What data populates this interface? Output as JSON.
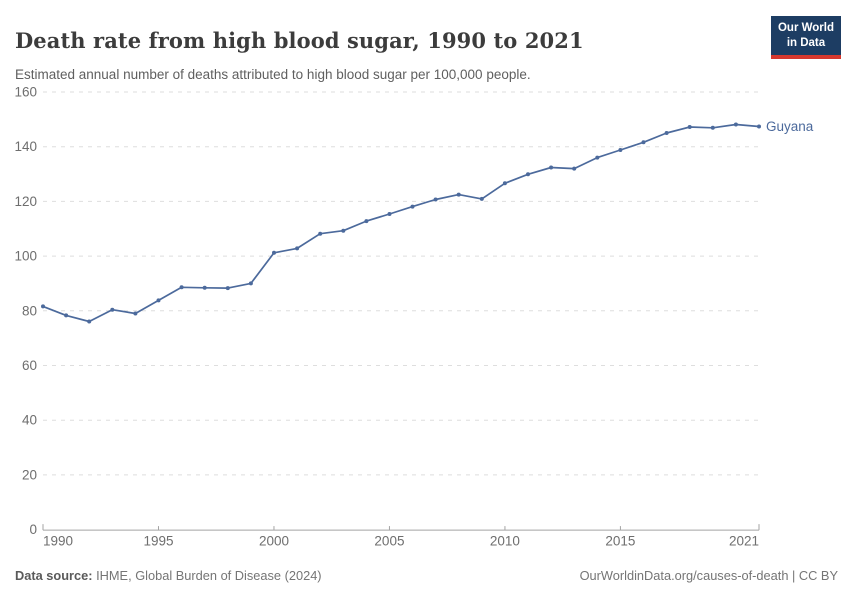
{
  "header": {
    "title": "Death rate from high blood sugar, 1990 to 2021",
    "subtitle": "Estimated annual number of deaths attributed to high blood sugar per 100,000 people.",
    "logo": {
      "line1": "Our World",
      "line2": "in Data",
      "bg_color": "#1d3d63",
      "accent_color": "#d7382e"
    }
  },
  "chart_data": {
    "type": "line",
    "title": "Death rate from high blood sugar, 1990 to 2021",
    "subtitle": "Estimated annual number of deaths attributed to high blood sugar per 100,000 people.",
    "xlabel": "",
    "ylabel": "",
    "xlim": [
      1990,
      2021
    ],
    "ylim": [
      0,
      160
    ],
    "yticks": [
      0,
      20,
      40,
      60,
      80,
      100,
      120,
      140,
      160
    ],
    "xticks": [
      1990,
      1995,
      2000,
      2005,
      2010,
      2015,
      2021
    ],
    "grid": "horizontal-dashed",
    "legend_position": "end-of-line-label",
    "series": [
      {
        "name": "Guyana",
        "color": "#4c6a9c",
        "x": [
          1990,
          1991,
          1992,
          1993,
          1994,
          1995,
          1996,
          1997,
          1998,
          1999,
          2000,
          2001,
          2002,
          2003,
          2004,
          2005,
          2006,
          2007,
          2008,
          2009,
          2010,
          2011,
          2012,
          2013,
          2014,
          2015,
          2016,
          2017,
          2018,
          2019,
          2020,
          2021
        ],
        "values": [
          81.6,
          78.3,
          76.1,
          80.4,
          79.0,
          83.8,
          88.6,
          88.4,
          88.3,
          90.0,
          101.2,
          102.8,
          108.2,
          109.3,
          112.8,
          115.4,
          118.1,
          120.7,
          122.5,
          120.9,
          126.6,
          129.9,
          132.4,
          132.0,
          136.0,
          138.8,
          141.6,
          145.0,
          147.2,
          146.9,
          148.1,
          147.4
        ]
      }
    ],
    "colors": {
      "gridline": "#dedede",
      "axis_line": "#a3a3a3",
      "tick_label": "#6e6e6e"
    }
  },
  "footer": {
    "source_label": "Data source:",
    "source_text": "IHME, Global Burden of Disease (2024)",
    "link_text": "OurWorldinData.org/causes-of-death | CC BY"
  }
}
